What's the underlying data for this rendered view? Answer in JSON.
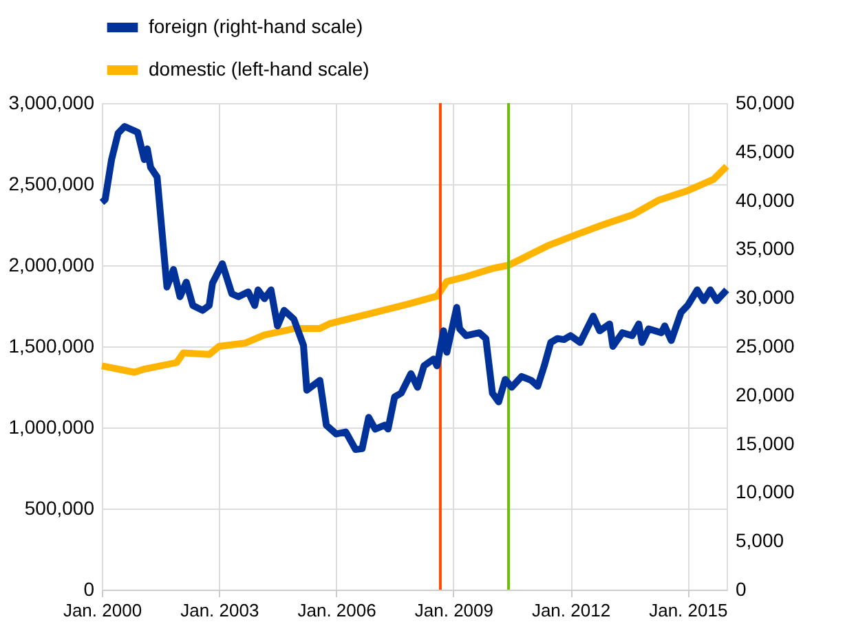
{
  "chart_data": {
    "type": "line",
    "legend": "top left",
    "grid": true,
    "marker": "none",
    "line_style": "solid",
    "xlim": [
      "2000-01",
      "2016-01"
    ],
    "xticks": [
      {
        "value": "2000-01",
        "label": "Jan. 2000"
      },
      {
        "value": "2003-01",
        "label": "Jan. 2003"
      },
      {
        "value": "2006-01",
        "label": "Jan. 2006"
      },
      {
        "value": "2009-01",
        "label": "Jan. 2009"
      },
      {
        "value": "2012-01",
        "label": "Jan. 2012"
      },
      {
        "value": "2015-01",
        "label": "Jan. 2015"
      }
    ],
    "ylim": [
      0,
      3000000
    ],
    "yticks": [
      {
        "value": 0,
        "label": "0"
      },
      {
        "value": 500000,
        "label": "500,000"
      },
      {
        "value": 1000000,
        "label": "1,000,000"
      },
      {
        "value": 1500000,
        "label": "1,500,000"
      },
      {
        "value": 2000000,
        "label": "2,000,000"
      },
      {
        "value": 2500000,
        "label": "2,500,000"
      },
      {
        "value": 3000000,
        "label": "3,000,000"
      }
    ],
    "y2lim": [
      0,
      50000
    ],
    "y2ticks": [
      {
        "value": 0,
        "label": "0"
      },
      {
        "value": 5000,
        "label": "5,000"
      },
      {
        "value": 10000,
        "label": "10,000"
      },
      {
        "value": 15000,
        "label": "15,000"
      },
      {
        "value": 20000,
        "label": "20,000"
      },
      {
        "value": 25000,
        "label": "25,000"
      },
      {
        "value": 30000,
        "label": "30,000"
      },
      {
        "value": 35000,
        "label": "35,000"
      },
      {
        "value": 40000,
        "label": "40,000"
      },
      {
        "value": 45000,
        "label": "45,000"
      },
      {
        "value": 50000,
        "label": "50,000"
      }
    ],
    "series": [
      {
        "name": "foreign (right-hand scale)",
        "color": "#003299",
        "axis": "y2",
        "x": [
          "2000-01",
          "2000-02",
          "2000-04",
          "2000-06",
          "2000-08",
          "2000-10",
          "2000-12",
          "2001-02",
          "2001-03",
          "2001-04",
          "2001-06",
          "2001-09",
          "2001-11",
          "2002-01",
          "2002-03",
          "2002-05",
          "2002-08",
          "2002-10",
          "2002-11",
          "2003-02",
          "2003-05",
          "2003-07",
          "2003-10",
          "2003-12",
          "2004-01",
          "2004-03",
          "2004-05",
          "2004-07",
          "2004-09",
          "2004-12",
          "2005-03",
          "2005-04",
          "2005-08",
          "2005-10",
          "2006-01",
          "2006-04",
          "2006-07",
          "2006-09",
          "2006-11",
          "2007-01",
          "2007-04",
          "2007-05",
          "2007-07",
          "2007-09",
          "2007-12",
          "2008-02",
          "2008-04",
          "2008-07",
          "2008-08",
          "2008-10",
          "2008-11",
          "2009-02",
          "2009-03",
          "2009-05",
          "2009-09",
          "2009-11",
          "2010-01",
          "2010-03",
          "2010-05",
          "2010-07",
          "2010-10",
          "2011-01",
          "2011-03",
          "2011-05",
          "2011-07",
          "2011-09",
          "2011-11",
          "2012-01",
          "2012-04",
          "2012-08",
          "2012-10",
          "2013-01",
          "2013-02",
          "2013-05",
          "2013-08",
          "2013-10",
          "2013-11",
          "2014-01",
          "2014-05",
          "2014-06",
          "2014-08",
          "2014-11",
          "2015-01",
          "2015-04",
          "2015-06",
          "2015-08",
          "2015-10",
          "2016-01"
        ],
        "values": [
          39800,
          40100,
          44200,
          46900,
          47600,
          47300,
          47000,
          44200,
          45300,
          43400,
          42400,
          31100,
          32900,
          30100,
          31600,
          29200,
          28700,
          29200,
          31500,
          33500,
          30400,
          30100,
          30600,
          29200,
          30800,
          29900,
          30800,
          27100,
          28700,
          27800,
          25100,
          20500,
          21500,
          16900,
          16000,
          16200,
          14400,
          14500,
          17700,
          16500,
          16900,
          16500,
          19800,
          20200,
          22200,
          20800,
          23000,
          23700,
          23000,
          26600,
          24400,
          29000,
          26800,
          26100,
          26400,
          25800,
          20200,
          19300,
          21600,
          20800,
          21900,
          21500,
          20900,
          23000,
          25400,
          25800,
          25700,
          26100,
          25400,
          28100,
          26600,
          27300,
          25000,
          26400,
          26100,
          27300,
          25400,
          26800,
          26400,
          27100,
          25600,
          28500,
          29200,
          30800,
          29700,
          30800,
          29700,
          30800
        ]
      },
      {
        "name": "domestic (left-hand scale)",
        "color": "#ffb400",
        "x": [
          "2000-01",
          "2000-11",
          "2001-02",
          "2001-12",
          "2002-02",
          "2002-10",
          "2003-01",
          "2003-09",
          "2004-03",
          "2004-10",
          "2004-12",
          "2005-08",
          "2005-11",
          "2006-11",
          "2007-11",
          "2008-08",
          "2008-11",
          "2009-05",
          "2010-01",
          "2010-06",
          "2010-12",
          "2011-06",
          "2012-03",
          "2012-11",
          "2013-08",
          "2014-04",
          "2015-01",
          "2015-09",
          "2016-01"
        ],
        "values": [
          1380000,
          1340000,
          1360000,
          1400000,
          1460000,
          1450000,
          1500000,
          1520000,
          1570000,
          1600000,
          1610000,
          1610000,
          1640000,
          1700000,
          1760000,
          1810000,
          1900000,
          1930000,
          1980000,
          2000000,
          2060000,
          2120000,
          2190000,
          2250000,
          2310000,
          2400000,
          2460000,
          2530000,
          2610000
        ]
      }
    ],
    "ref_lines": [
      {
        "axis": "x",
        "value": "2008-09",
        "color": "#ff4b00"
      },
      {
        "axis": "x",
        "value": "2010-06",
        "color": "#6cbf00"
      }
    ]
  }
}
